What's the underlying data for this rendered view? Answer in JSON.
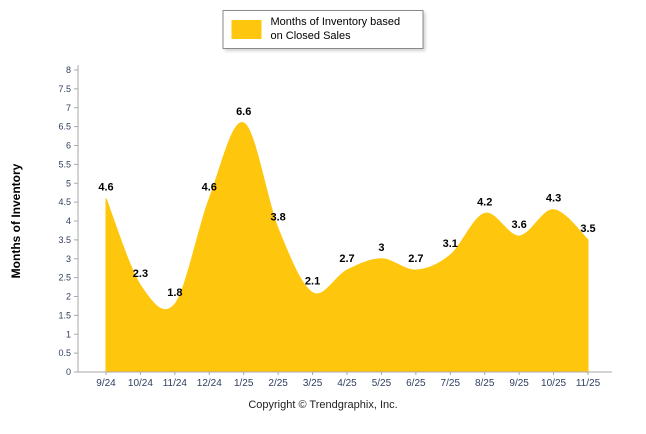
{
  "chart_data": {
    "type": "area",
    "title": "Months of Inventory based on Closed Sales",
    "legend": "Months of Inventory based on Closed Sales",
    "categories": [
      "9/24",
      "10/24",
      "11/24",
      "12/24",
      "1/25",
      "2/25",
      "3/25",
      "4/25",
      "5/25",
      "6/25",
      "7/25",
      "8/25",
      "9/25",
      "10/25",
      "11/25"
    ],
    "values": [
      4.6,
      2.3,
      1.8,
      4.6,
      6.6,
      3.8,
      2.1,
      2.7,
      3,
      2.7,
      3.1,
      4.2,
      3.6,
      4.3,
      3.5
    ],
    "xlabel": "",
    "ylabel": "Months of Inventory",
    "ylim": [
      0,
      8
    ],
    "ytick_step": 0.5,
    "grid": false,
    "smooth": true,
    "legend_position": "top-center",
    "colors": {
      "area": "#FFC60E",
      "axis_line": "#A8A8A8",
      "axis_text": "#2F3F5F",
      "data_label": "#000000"
    }
  },
  "footer": {
    "copyright": "Copyright © Trendgraphix, Inc."
  }
}
